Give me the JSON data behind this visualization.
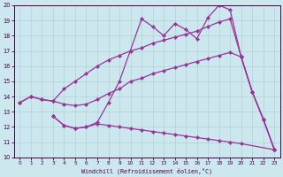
{
  "xlabel": "Windchill (Refroidissement éolien,°C)",
  "xlim": [
    -0.5,
    23.5
  ],
  "ylim": [
    10,
    20
  ],
  "xticks": [
    0,
    1,
    2,
    3,
    4,
    5,
    6,
    7,
    8,
    9,
    10,
    11,
    12,
    13,
    14,
    15,
    16,
    17,
    18,
    19,
    20,
    21,
    22,
    23
  ],
  "yticks": [
    10,
    11,
    12,
    13,
    14,
    15,
    16,
    17,
    18,
    19,
    20
  ],
  "bg_color": "#cce8ee",
  "line_color": "#993399",
  "lines": [
    {
      "x": [
        0,
        1,
        2,
        3,
        4,
        5,
        6,
        7,
        8,
        9,
        10,
        11,
        12,
        13,
        14,
        15,
        16,
        17,
        18,
        19,
        20,
        21,
        22,
        23
      ],
      "y": [
        13.6,
        14.0,
        13.8,
        13.7,
        14.5,
        15.0,
        15.5,
        16.0,
        16.4,
        16.7,
        17.0,
        17.2,
        17.5,
        17.7,
        17.9,
        18.1,
        18.3,
        18.6,
        18.9,
        19.1,
        16.6,
        14.3,
        12.5,
        10.5
      ]
    },
    {
      "x": [
        0,
        1,
        2,
        3,
        4,
        5,
        6,
        7,
        8,
        9,
        10,
        11,
        12,
        13,
        14,
        15,
        16,
        17,
        18,
        19,
        20,
        21,
        22,
        23
      ],
      "y": [
        13.6,
        14.0,
        13.8,
        13.7,
        13.5,
        13.4,
        13.5,
        13.8,
        14.2,
        14.5,
        15.0,
        15.2,
        15.5,
        15.7,
        15.9,
        16.1,
        16.3,
        16.5,
        16.7,
        16.9,
        16.6,
        14.3,
        12.5,
        10.5
      ]
    },
    {
      "x": [
        3,
        4,
        5,
        6,
        7,
        8,
        9,
        11,
        12,
        13,
        14,
        15,
        16,
        17,
        18,
        19,
        20,
        21,
        22,
        23
      ],
      "y": [
        12.7,
        12.1,
        11.9,
        12.0,
        12.3,
        13.6,
        15.0,
        19.1,
        18.6,
        18.0,
        18.8,
        18.4,
        17.8,
        19.2,
        20.0,
        19.7,
        16.6,
        14.3,
        12.5,
        10.5
      ]
    },
    {
      "x": [
        3,
        4,
        5,
        6,
        7,
        8,
        9,
        10,
        11,
        12,
        13,
        14,
        15,
        16,
        17,
        18,
        19,
        20,
        23
      ],
      "y": [
        12.7,
        12.1,
        11.9,
        12.0,
        12.2,
        12.1,
        12.0,
        11.9,
        11.8,
        11.7,
        11.6,
        11.5,
        11.4,
        11.3,
        11.2,
        11.1,
        11.0,
        10.9,
        10.5
      ]
    }
  ]
}
